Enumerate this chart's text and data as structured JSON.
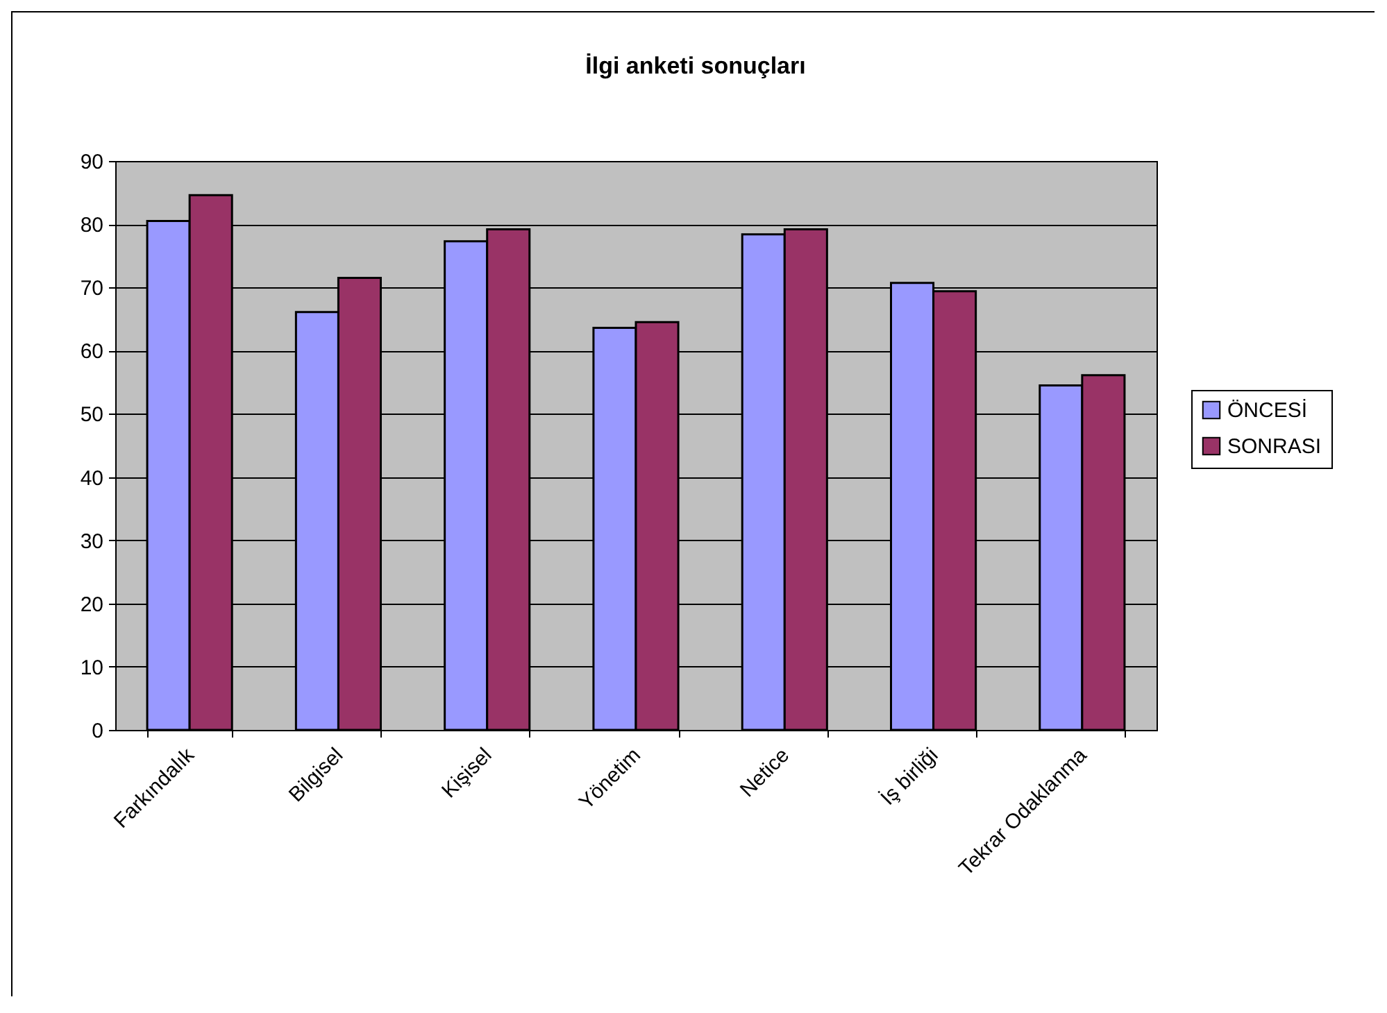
{
  "chart_data": {
    "type": "bar",
    "title": "İlgi anketi sonuçları",
    "categories": [
      "Farkındalık",
      "Bilgisel",
      "Kişisel",
      "Yönetim",
      "Netice",
      "İş birliği",
      "Tekrar Odaklanma"
    ],
    "series": [
      {
        "name": "ÖNCESİ",
        "color": "#9999ff",
        "values": [
          80.5,
          66.1,
          77.3,
          63.6,
          78.4,
          70.7,
          54.5
        ]
      },
      {
        "name": "SONRASI",
        "color": "#993366",
        "values": [
          84.6,
          71.5,
          79.2,
          64.5,
          79.2,
          69.4,
          56.1
        ]
      }
    ],
    "ylim": [
      0,
      90
    ],
    "yticks": [
      0,
      10,
      20,
      30,
      40,
      50,
      60,
      70,
      80,
      90
    ],
    "grid": "y",
    "legend": "right"
  }
}
